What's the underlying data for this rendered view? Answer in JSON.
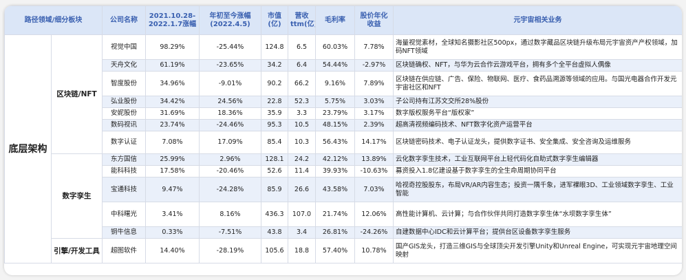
{
  "headers": [
    "路径领域/细分板块",
    "公司名称",
    "2021.10.28-2022.1.7涨幅",
    "年初至今涨幅(2022.4.5)",
    "市值(亿)",
    "营收ttm(亿)",
    "毛利率",
    "股价年化收益",
    "元宇宙相关业务"
  ],
  "layer": "底层架构",
  "groups": {
    "blockchain": "区块链/NFT",
    "twin": "数字孪生",
    "engine": "引擎/开发工具"
  },
  "rows": [
    {
      "company": "视觉中国",
      "rise_period": "98.29%",
      "ytd": "-25.44%",
      "mktcap": "124.8",
      "revenue": "6.5",
      "margin": "60.03%",
      "annual_return": "7.78%",
      "business": "海量视觉素材，全球知名摄影社区500px，通过数字藏品区块链升级布局元宇宙资产产权领域，加码NFT领域"
    },
    {
      "company": "天舟文化",
      "rise_period": "61.19%",
      "ytd": "-23.65%",
      "mktcap": "34.2",
      "revenue": "6.4",
      "margin": "54.44%",
      "annual_return": "-2.97%",
      "business": "区块链确权、NFT，与华为云合作云游戏平台，拥有多个全平台虚拟人偶像"
    },
    {
      "company": "智度股份",
      "rise_period": "34.96%",
      "ytd": "-9.01%",
      "mktcap": "90.2",
      "revenue": "66.2",
      "margin": "9.16%",
      "annual_return": "7.89%",
      "business": "区块链在供应链、广告、保险、物联网、医疗、食药品溯源等领域的应用。与国光电器合作开发元宇宙社区和NFT"
    },
    {
      "company": "弘业股份",
      "rise_period": "34.42%",
      "ytd": "24.56%",
      "mktcap": "22.8",
      "revenue": "52.3",
      "margin": "5.75%",
      "annual_return": "3.03%",
      "business": "子公司持有江苏文交所28%股份"
    },
    {
      "company": "安妮股份",
      "rise_period": "31.69%",
      "ytd": "18.36%",
      "mktcap": "35.9",
      "revenue": "3.3",
      "margin": "23.79%",
      "annual_return": "3.17%",
      "business": "数字版权服务平台“版权家”"
    },
    {
      "company": "数码视讯",
      "rise_period": "23.74%",
      "ytd": "-24.46%",
      "mktcap": "95.3",
      "revenue": "10.5",
      "margin": "48.15%",
      "annual_return": "2.39%",
      "business": "超高清视频编码技术、NFT数字化资产运营平台"
    },
    {
      "company": "数字认证",
      "rise_period": "7.08%",
      "ytd": "17.09%",
      "mktcap": "85.4",
      "revenue": "10.3",
      "margin": "56.43%",
      "annual_return": "14.17%",
      "business": "区块链密码技术、电子认证龙头，提供数字证书、安全集成、安全咨询及运维服务"
    },
    {
      "company": "东方国信",
      "rise_period": "25.99%",
      "ytd": "2.96%",
      "mktcap": "128.1",
      "revenue": "24.2",
      "margin": "42.12%",
      "annual_return": "13.89%",
      "business": "云化数字孪生技术，工业互联网平台上轻代码化自助式数字孪生编辑器"
    },
    {
      "company": "能科科技",
      "rise_period": "17.58%",
      "ytd": "-20.46%",
      "mktcap": "52.6",
      "revenue": "11.4",
      "margin": "39.93%",
      "annual_return": "-10.63%",
      "business": "募资投入1.8亿建设基于数字孪生的全生命周期协同平台"
    },
    {
      "company": "宝通科技",
      "rise_period": "9.47%",
      "ytd": "-24.28%",
      "mktcap": "85.9",
      "revenue": "26.6",
      "margin": "43.58%",
      "annual_return": "7.03%",
      "business": "哈视奇控股股东，布局VR/AR内容生态；投资一隅千象，进军裸眼3D、工业领域数字孪生、工业智能"
    },
    {
      "company": "中科曙光",
      "rise_period": "3.41%",
      "ytd": "8.16%",
      "mktcap": "436.3",
      "revenue": "107.0",
      "margin": "21.74%",
      "annual_return": "12.06%",
      "business": "高性能计算机、云计算；与合作伙伴共同打造数字孪生体“水坝数字孪生体”"
    },
    {
      "company": "铜牛信息",
      "rise_period": "0.33%",
      "ytd": "-7.51%",
      "mktcap": "43.8",
      "revenue": "3.4",
      "margin": "26.81%",
      "annual_return": "-24.26%",
      "business": "自建数据中心IDC和云计算平台；提供台区设备数字孪生服务"
    },
    {
      "company": "超图软件",
      "rise_period": "14.40%",
      "ytd": "-28.19%",
      "mktcap": "105.6",
      "revenue": "18.8",
      "margin": "57.40%",
      "annual_return": "10.78%",
      "business": "国产GIS龙头，打造三维GIS与全球顶尖开发引擎Unity和Unreal Engine，可实现元宇宙地理空间映射"
    }
  ]
}
